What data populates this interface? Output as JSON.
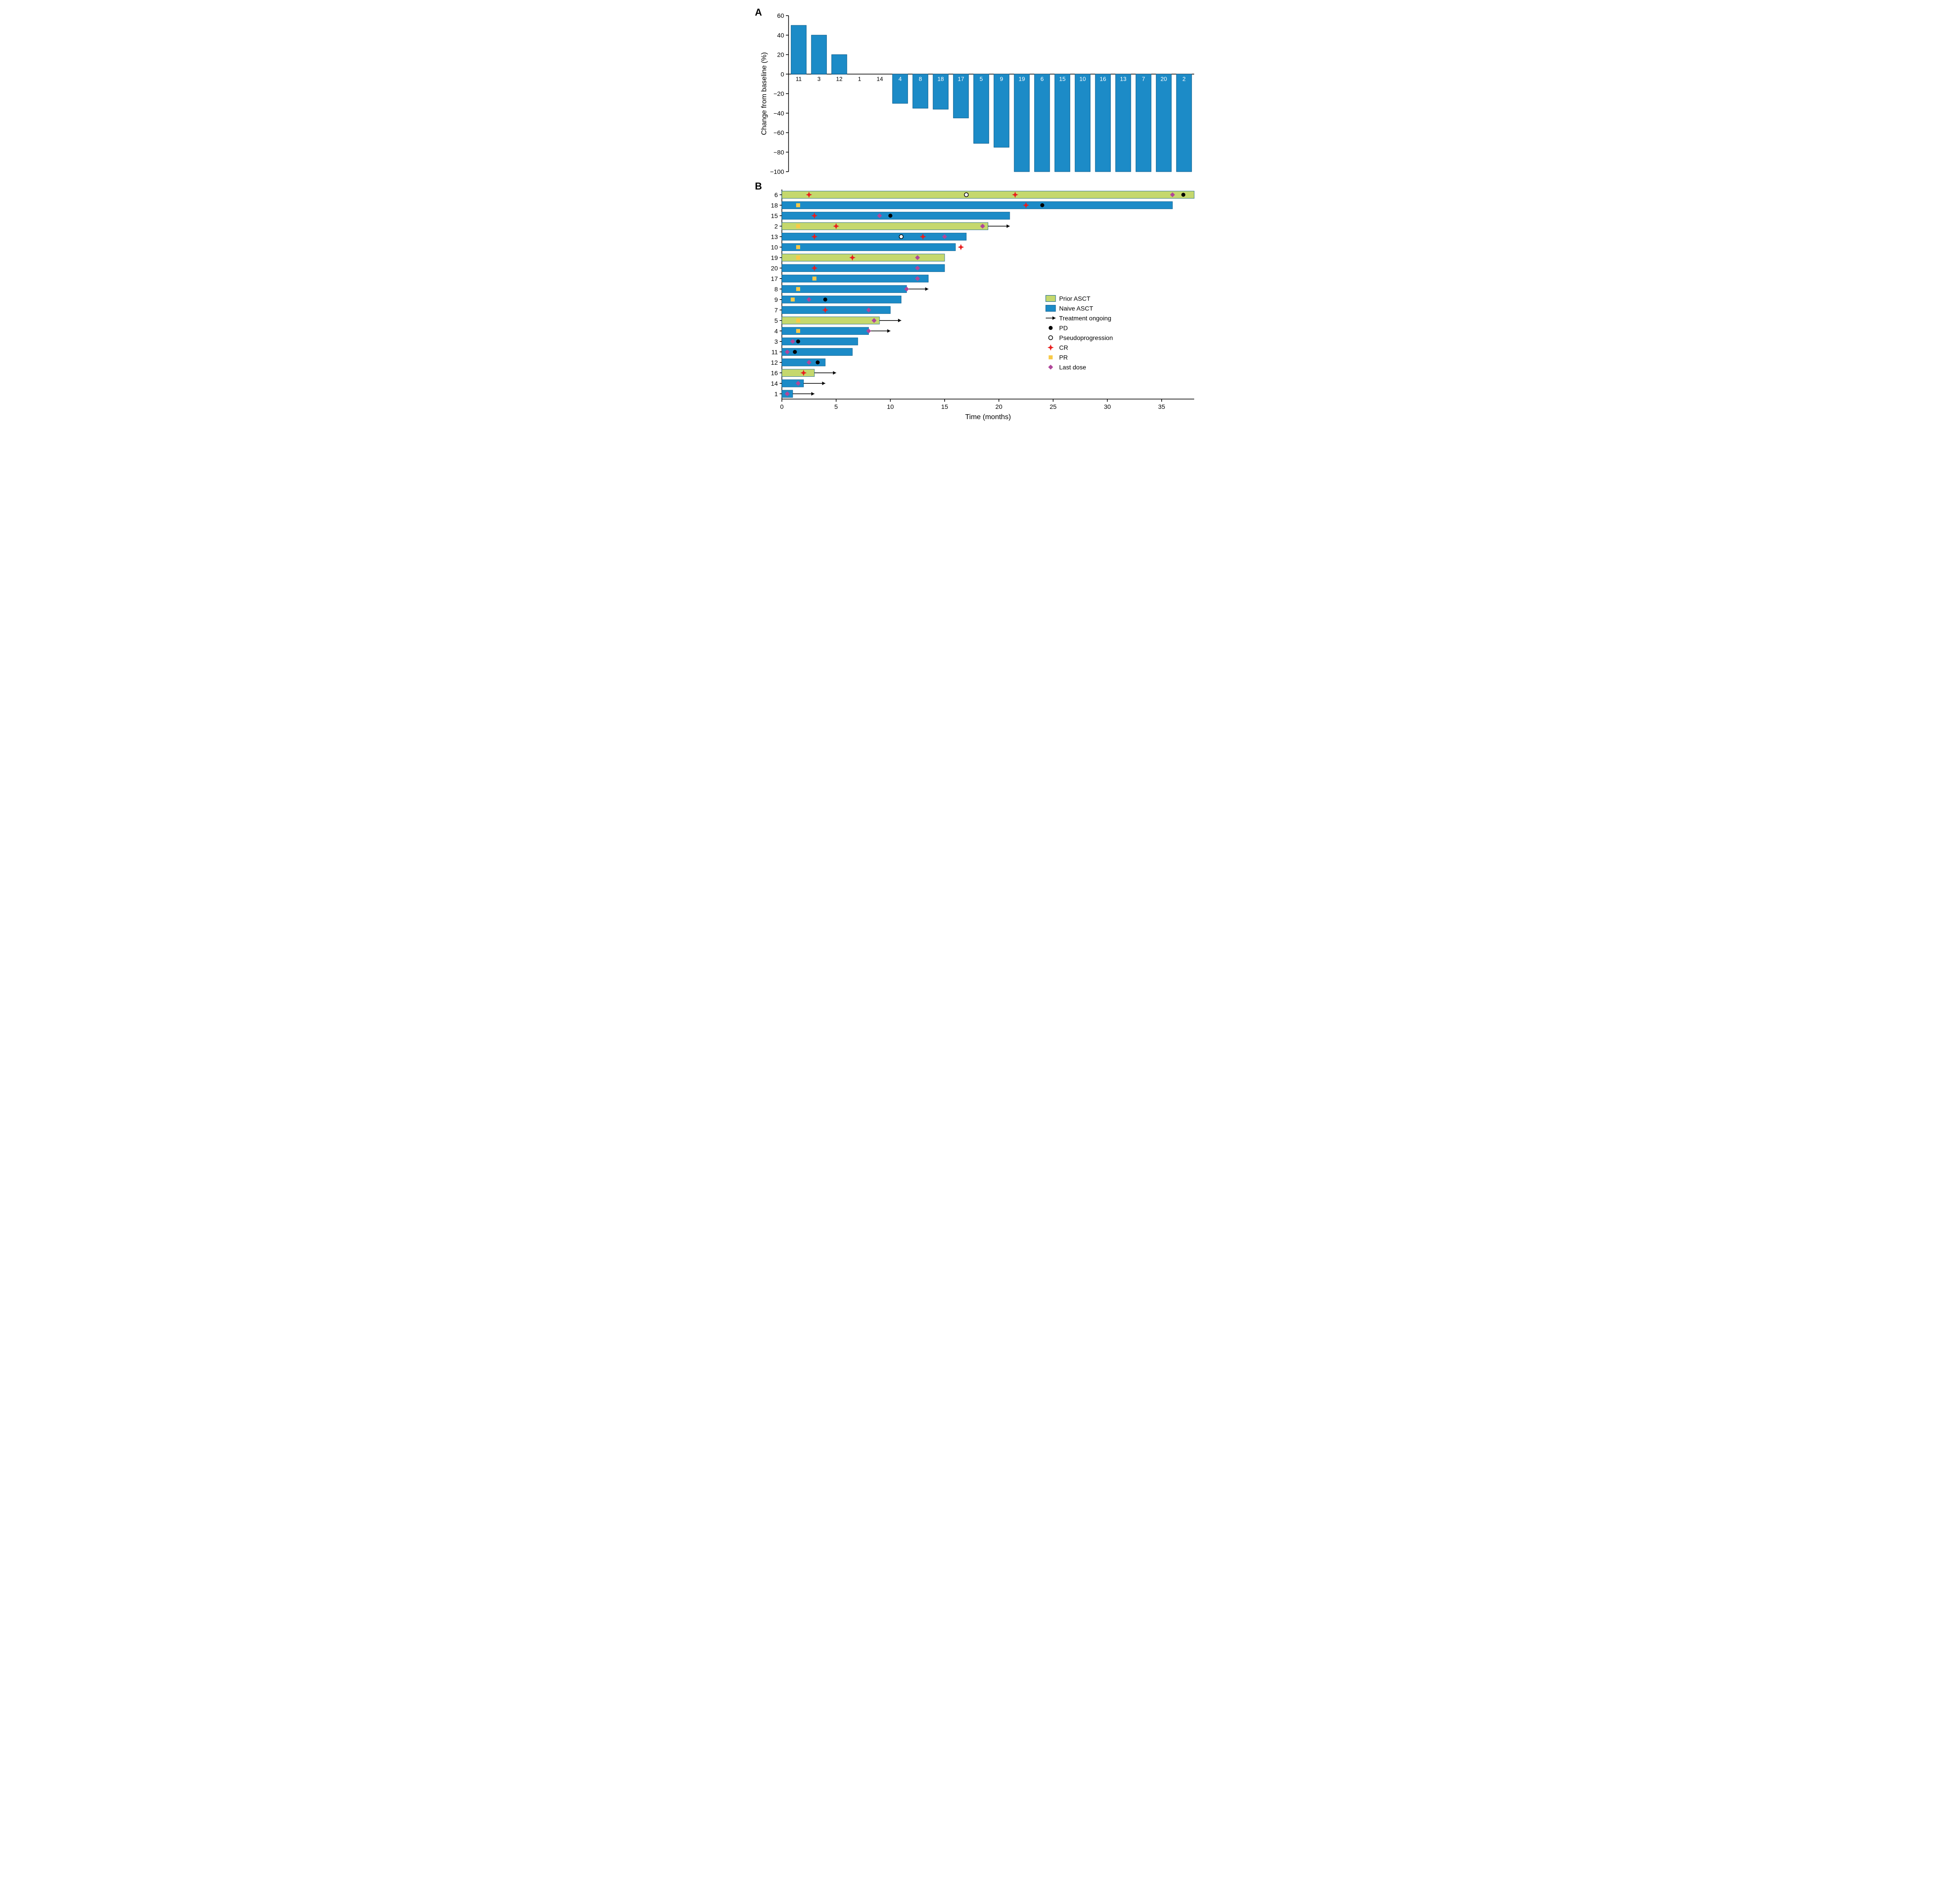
{
  "panelA": {
    "label": "A",
    "type": "bar",
    "ylabel": "Change from baseline (%)",
    "ylim": [
      -100,
      60
    ],
    "ytick_step": 20,
    "bar_color": "#1c8bc7",
    "bar_stroke": "#0d5e8c",
    "background": "#ffffff",
    "bar_width": 0.75,
    "bars": [
      {
        "id": "11",
        "value": 50
      },
      {
        "id": "3",
        "value": 40
      },
      {
        "id": "12",
        "value": 20
      },
      {
        "id": "1",
        "value": 0
      },
      {
        "id": "14",
        "value": 0
      },
      {
        "id": "4",
        "value": -30
      },
      {
        "id": "8",
        "value": -35
      },
      {
        "id": "18",
        "value": -36
      },
      {
        "id": "17",
        "value": -45
      },
      {
        "id": "5",
        "value": -71
      },
      {
        "id": "9",
        "value": -75
      },
      {
        "id": "19",
        "value": -100
      },
      {
        "id": "6",
        "value": -100
      },
      {
        "id": "15",
        "value": -100
      },
      {
        "id": "10",
        "value": -100
      },
      {
        "id": "16",
        "value": -100
      },
      {
        "id": "13",
        "value": -100
      },
      {
        "id": "7",
        "value": -100
      },
      {
        "id": "20",
        "value": -100
      },
      {
        "id": "2",
        "value": -100
      }
    ],
    "label_fontsize": 13,
    "axis_fontsize": 14
  },
  "panelB": {
    "label": "B",
    "type": "swimmer",
    "xlabel": "Time (months)",
    "xlim": [
      0,
      38
    ],
    "xtick_step": 5,
    "bar_height": 0.7,
    "colors": {
      "prior_asct": "#c5d86d",
      "naive_asct": "#1c8bc7",
      "bar_stroke": "#0d5e8c",
      "pd": "#000000",
      "pseudo_stroke": "#000000",
      "pseudo_fill": "#ffffff",
      "cr": "#e91e1e",
      "pr": "#f7c948",
      "last_dose": "#b0479a",
      "arrow": "#000000"
    },
    "legend": {
      "prior_asct": "Prior ASCT",
      "naive_asct": "Naive ASCT",
      "ongoing": "Treatment ongoing",
      "pd": "PD",
      "pseudo": "Pseudoprogression",
      "cr": "CR",
      "pr": "PR",
      "last_dose": "Last dose"
    },
    "rows": [
      {
        "id": "6",
        "group": "prior",
        "length": 38,
        "ongoing": false,
        "markers": [
          {
            "type": "cr",
            "t": 2.5
          },
          {
            "type": "pseudo",
            "t": 17
          },
          {
            "type": "cr",
            "t": 21.5
          },
          {
            "type": "last_dose",
            "t": 36
          },
          {
            "type": "pd",
            "t": 37
          }
        ]
      },
      {
        "id": "18",
        "group": "naive",
        "length": 36,
        "ongoing": false,
        "markers": [
          {
            "type": "pr",
            "t": 1.5
          },
          {
            "type": "cr",
            "t": 22.5
          },
          {
            "type": "pd",
            "t": 24
          }
        ]
      },
      {
        "id": "15",
        "group": "naive",
        "length": 21,
        "ongoing": false,
        "markers": [
          {
            "type": "cr",
            "t": 3
          },
          {
            "type": "last_dose",
            "t": 9
          },
          {
            "type": "pd",
            "t": 10
          }
        ]
      },
      {
        "id": "2",
        "group": "prior",
        "length": 19,
        "ongoing": true,
        "markers": [
          {
            "type": "pr",
            "t": 1.5
          },
          {
            "type": "cr",
            "t": 5
          },
          {
            "type": "last_dose",
            "t": 18.5
          }
        ]
      },
      {
        "id": "13",
        "group": "naive",
        "length": 17,
        "ongoing": false,
        "markers": [
          {
            "type": "cr",
            "t": 3
          },
          {
            "type": "pseudo",
            "t": 11
          },
          {
            "type": "cr",
            "t": 13
          },
          {
            "type": "last_dose",
            "t": 15
          }
        ]
      },
      {
        "id": "10",
        "group": "naive",
        "length": 16,
        "ongoing": false,
        "markers": [
          {
            "type": "pr",
            "t": 1.5
          },
          {
            "type": "cr",
            "t": 16.5
          }
        ]
      },
      {
        "id": "19",
        "group": "prior",
        "length": 15,
        "ongoing": false,
        "markers": [
          {
            "type": "pr",
            "t": 1.5
          },
          {
            "type": "cr",
            "t": 6.5
          },
          {
            "type": "last_dose",
            "t": 12.5
          }
        ]
      },
      {
        "id": "20",
        "group": "naive",
        "length": 15,
        "ongoing": false,
        "markers": [
          {
            "type": "cr",
            "t": 3
          },
          {
            "type": "last_dose",
            "t": 12.5
          }
        ]
      },
      {
        "id": "17",
        "group": "naive",
        "length": 13.5,
        "ongoing": false,
        "markers": [
          {
            "type": "pr",
            "t": 3
          },
          {
            "type": "last_dose",
            "t": 12.5
          }
        ]
      },
      {
        "id": "8",
        "group": "naive",
        "length": 11.5,
        "ongoing": true,
        "markers": [
          {
            "type": "pr",
            "t": 1.5
          },
          {
            "type": "last_dose",
            "t": 11.5
          }
        ]
      },
      {
        "id": "9",
        "group": "naive",
        "length": 11,
        "ongoing": false,
        "markers": [
          {
            "type": "pr",
            "t": 1
          },
          {
            "type": "last_dose",
            "t": 2.5
          },
          {
            "type": "pd",
            "t": 4
          }
        ]
      },
      {
        "id": "7",
        "group": "naive",
        "length": 10,
        "ongoing": false,
        "markers": [
          {
            "type": "cr",
            "t": 4
          },
          {
            "type": "last_dose",
            "t": 8
          }
        ]
      },
      {
        "id": "5",
        "group": "prior",
        "length": 9,
        "ongoing": true,
        "markers": [
          {
            "type": "pr",
            "t": 1.5
          },
          {
            "type": "last_dose",
            "t": 8.5
          }
        ]
      },
      {
        "id": "4",
        "group": "naive",
        "length": 8,
        "ongoing": true,
        "markers": [
          {
            "type": "pr",
            "t": 1.5
          },
          {
            "type": "last_dose",
            "t": 8
          }
        ]
      },
      {
        "id": "3",
        "group": "naive",
        "length": 7,
        "ongoing": false,
        "markers": [
          {
            "type": "last_dose",
            "t": 1
          },
          {
            "type": "pd",
            "t": 1.5
          }
        ]
      },
      {
        "id": "11",
        "group": "naive",
        "length": 6.5,
        "ongoing": false,
        "markers": [
          {
            "type": "last_dose",
            "t": 0.5
          },
          {
            "type": "pd",
            "t": 1.2
          }
        ]
      },
      {
        "id": "12",
        "group": "naive",
        "length": 4,
        "ongoing": false,
        "markers": [
          {
            "type": "last_dose",
            "t": 2.5
          },
          {
            "type": "pd",
            "t": 3.3
          }
        ]
      },
      {
        "id": "16",
        "group": "prior",
        "length": 3,
        "ongoing": true,
        "markers": [
          {
            "type": "cr",
            "t": 2
          }
        ]
      },
      {
        "id": "14",
        "group": "naive",
        "length": 2,
        "ongoing": true,
        "markers": [
          {
            "type": "last_dose",
            "t": 1.5
          }
        ]
      },
      {
        "id": "1",
        "group": "naive",
        "length": 1,
        "ongoing": true,
        "markers": [
          {
            "type": "last_dose",
            "t": 0.5
          }
        ]
      }
    ],
    "axis_fontsize": 14
  }
}
